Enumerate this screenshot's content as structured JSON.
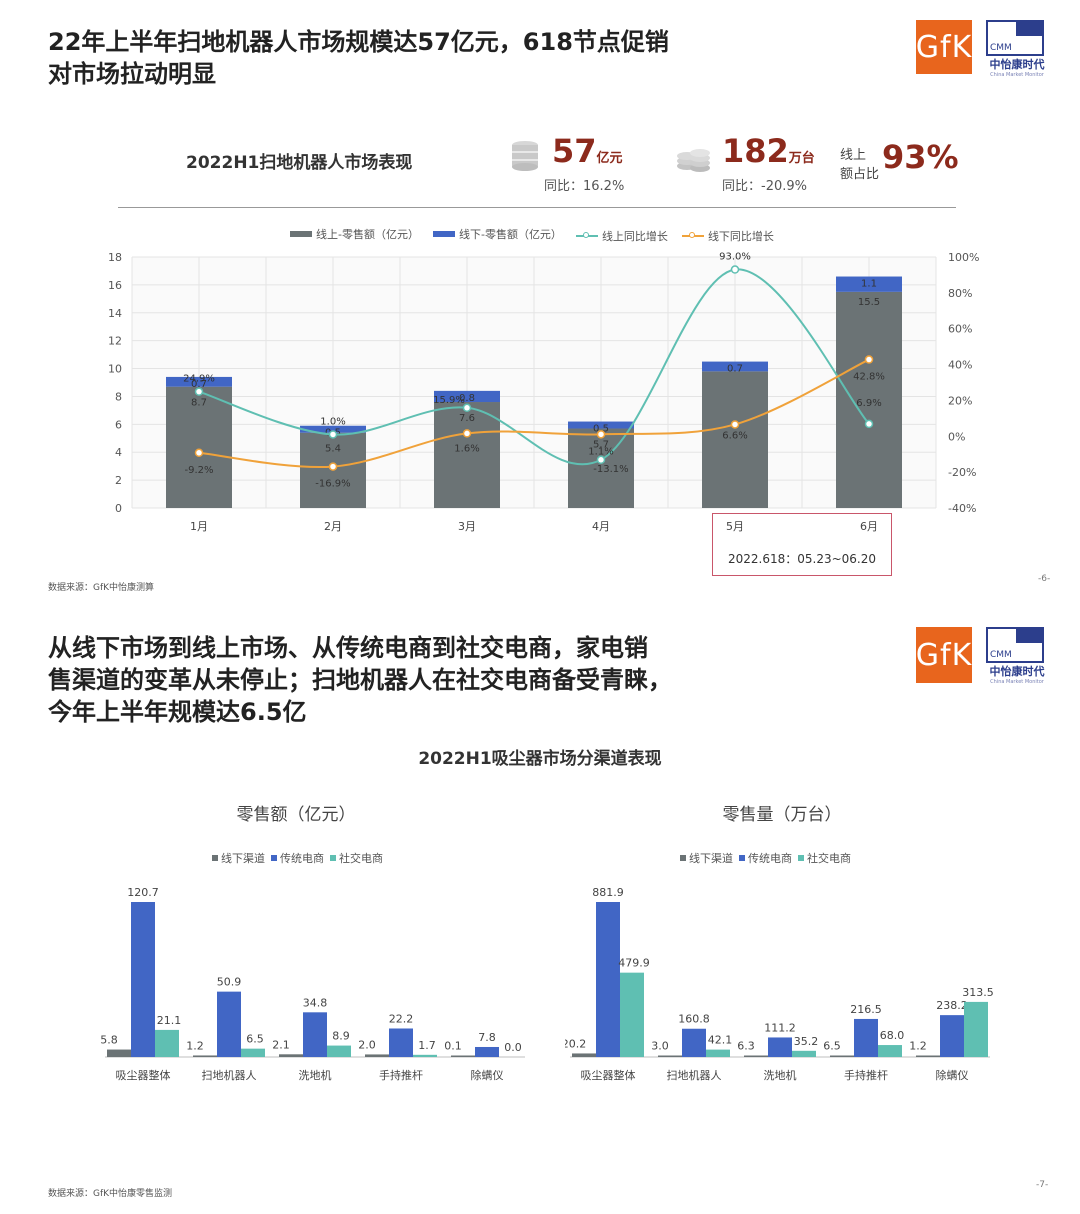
{
  "slide1": {
    "headline_line1": "22年上半年扫地机器人市场规模达57亿元，618节点促销",
    "headline_line2": "对市场拉动明显",
    "subtitle": "2022H1扫地机器人市场表现",
    "kpi1": {
      "value": "57",
      "unit": "亿元",
      "sub": "同比：16.2%"
    },
    "kpi2": {
      "value": "182",
      "unit": "万台",
      "sub": "同比：-20.9%"
    },
    "kpi3": {
      "label_line1": "线上",
      "label_line2": "额占比",
      "value": "93%"
    },
    "callout": "2022.618：05.23~06.20",
    "source": "数据来源：GfK中怡康测算",
    "page": "-6-"
  },
  "slide2": {
    "headline_line1": "从线下市场到线上市场、从传统电商到社交电商，家电销",
    "headline_line2": "售渠道的变革从未停止；扫地机器人在社交电商备受青睐，",
    "headline_line3": "今年上半年规模达6.5亿",
    "subtitle": "2022H1吸尘器市场分渠道表现",
    "source": "数据来源：GfK中怡康零售监测",
    "page": "-7-"
  },
  "logo": {
    "gfk": "GfK",
    "cmm": "CMM",
    "cmm_name": "中怡康时代",
    "cmm_en": "China Market Monitor"
  },
  "colors": {
    "gray": "#6b7375",
    "blue": "#4166c5",
    "teal": "#5fbfb2",
    "orange": "#f0a23a",
    "kpi": "#8c2a1c"
  },
  "chart_data": [
    {
      "type": "bar",
      "stacked": true,
      "categories": [
        "1月",
        "2月",
        "3月",
        "4月",
        "5月",
        "6月"
      ],
      "ylim": [
        0,
        18
      ],
      "yticks": [
        0,
        2,
        4,
        6,
        8,
        10,
        12,
        14,
        16,
        18
      ],
      "y2lim": [
        -40,
        100
      ],
      "y2ticks": [
        "-40%",
        "-20%",
        "0%",
        "20%",
        "40%",
        "60%",
        "80%",
        "100%"
      ],
      "series": [
        {
          "name": "线上-零售额（亿元）",
          "kind": "bar",
          "color": "#6b7375",
          "values": [
            8.7,
            5.4,
            7.6,
            5.7,
            9.8,
            15.5
          ],
          "labels": [
            "8.7",
            "5.4",
            "7.6",
            "5.7",
            "",
            "15.5"
          ]
        },
        {
          "name": "线下-零售额（亿元）",
          "kind": "bar",
          "color": "#4166c5",
          "values": [
            0.7,
            0.5,
            0.8,
            0.5,
            0.7,
            1.1
          ],
          "labels": [
            "0.7",
            "0.5",
            "0.8",
            "0.5",
            "0.7",
            "1.1"
          ]
        },
        {
          "name": "线上同比增长",
          "kind": "line",
          "axis": "right",
          "color": "#5fbfb2",
          "values": [
            24.9,
            1.0,
            15.9,
            -13.1,
            93.0,
            6.9
          ],
          "labels": [
            "24.9%",
            "1.0%",
            "15.9%",
            "-13.1%",
            "93.0%",
            "6.9%"
          ]
        },
        {
          "name": "线下同比增长",
          "kind": "line",
          "axis": "right",
          "color": "#f0a23a",
          "values": [
            -9.2,
            -16.9,
            1.6,
            1.1,
            6.6,
            42.8
          ],
          "labels": [
            "-9.2%",
            "-16.9%",
            "1.6%",
            "1.1%",
            "6.6%",
            "42.8%"
          ]
        }
      ]
    },
    {
      "type": "bar",
      "title": "零售额（亿元）",
      "categories": [
        "吸尘器整体",
        "扫地机器人",
        "洗地机",
        "手持推杆",
        "除螨仪"
      ],
      "series": [
        {
          "name": "线下渠道",
          "color": "#6b7375",
          "values": [
            5.8,
            1.2,
            2.1,
            2.0,
            0.1
          ]
        },
        {
          "name": "传统电商",
          "color": "#4166c5",
          "values": [
            120.7,
            50.9,
            34.8,
            22.2,
            7.8
          ]
        },
        {
          "name": "社交电商",
          "color": "#5fbfb2",
          "values": [
            21.1,
            6.5,
            8.9,
            1.7,
            0.0
          ]
        }
      ]
    },
    {
      "type": "bar",
      "title": "零售量（万台）",
      "categories": [
        "吸尘器整体",
        "扫地机器人",
        "洗地机",
        "手持推杆",
        "除螨仪"
      ],
      "series": [
        {
          "name": "线下渠道",
          "color": "#6b7375",
          "values": [
            20.2,
            3.0,
            6.3,
            6.5,
            1.2
          ]
        },
        {
          "name": "传统电商",
          "color": "#4166c5",
          "values": [
            881.9,
            160.8,
            111.2,
            216.5,
            238.2
          ]
        },
        {
          "name": "社交电商",
          "color": "#5fbfb2",
          "values": [
            479.9,
            42.1,
            35.2,
            68.0,
            313.5
          ]
        }
      ]
    }
  ]
}
